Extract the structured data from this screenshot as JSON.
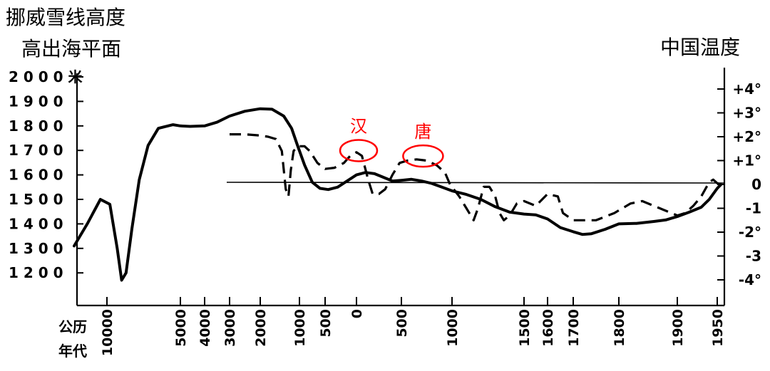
{
  "chart_data": {
    "type": "line",
    "left_title_line1": "挪威雪线高度",
    "left_title_line2": "高出海平面",
    "right_title": "中国温度",
    "y_left_ticks": [
      "2 0 0 0 米",
      "1 9 0 0",
      "1 8 0 0",
      "1 7 0 0",
      "1 6 0 0",
      "1 5 0 0",
      "1 4 0 0",
      "1 3 0 0",
      "1 2 0 0"
    ],
    "y_left_range": [
      1150,
      2000
    ],
    "y_right_ticks": [
      "+4°",
      "+3°",
      "+2°",
      "+1°",
      "0",
      "-1",
      "-2°",
      "-3",
      "-4°"
    ],
    "y_right_range": [
      -4,
      4
    ],
    "x_label_line1": "公历",
    "x_label_line2": "年代",
    "x_ticks": [
      "10000",
      "5000",
      "4000",
      "3000",
      "2000",
      "1000",
      "500",
      "0",
      "500",
      "1000",
      "1500",
      "1600",
      "1700",
      "1800",
      "1900",
      "1950"
    ],
    "annotations": [
      {
        "text": "汉",
        "x_year": 0,
        "temp": 1.3
      },
      {
        "text": "唐",
        "x_year": 700,
        "temp": 1.1
      }
    ],
    "series": [
      {
        "points": [
          [
            -12500,
            1310
          ],
          [
            -11500,
            1400
          ],
          [
            -10500,
            1500
          ],
          [
            -9800,
            1480
          ],
          [
            -9300,
            1300
          ],
          [
            -9000,
            1170
          ],
          [
            -8700,
            1200
          ],
          [
            -8300,
            1380
          ],
          [
            -7800,
            1580
          ],
          [
            -7200,
            1720
          ],
          [
            -6500,
            1790
          ],
          [
            -5500,
            1805
          ],
          [
            -5000,
            1800
          ],
          [
            -4600,
            1798
          ],
          [
            -4000,
            1800
          ],
          [
            -3500,
            1815
          ],
          [
            -3000,
            1840
          ],
          [
            -2500,
            1860
          ],
          [
            -2000,
            1870
          ],
          [
            -1700,
            1868
          ],
          [
            -1400,
            1840
          ],
          [
            -1200,
            1790
          ],
          [
            -1050,
            1720
          ],
          [
            -900,
            1640
          ],
          [
            -750,
            1570
          ],
          [
            -600,
            1545
          ],
          [
            -450,
            1540
          ],
          [
            -300,
            1550
          ],
          [
            -150,
            1575
          ],
          [
            0,
            1600
          ],
          [
            100,
            1610
          ],
          [
            200,
            1605
          ],
          [
            300,
            1590
          ],
          [
            400,
            1575
          ],
          [
            500,
            1578
          ],
          [
            600,
            1582
          ],
          [
            700,
            1575
          ],
          [
            800,
            1565
          ],
          [
            900,
            1550
          ],
          [
            1000,
            1535
          ],
          [
            1100,
            1520
          ],
          [
            1200,
            1500
          ],
          [
            1300,
            1470
          ],
          [
            1400,
            1448
          ],
          [
            1500,
            1440
          ],
          [
            1550,
            1437
          ],
          [
            1600,
            1420
          ],
          [
            1650,
            1385
          ],
          [
            1700,
            1368
          ],
          [
            1720,
            1357
          ],
          [
            1740,
            1360
          ],
          [
            1770,
            1378
          ],
          [
            1800,
            1400
          ],
          [
            1830,
            1402
          ],
          [
            1860,
            1410
          ],
          [
            1880,
            1416
          ],
          [
            1900,
            1430
          ],
          [
            1915,
            1448
          ],
          [
            1930,
            1468
          ],
          [
            1940,
            1500
          ],
          [
            1950,
            1545
          ],
          [
            1955,
            1560
          ]
        ]
      },
      {
        "points": [
          [
            -3000,
            2.1
          ],
          [
            -2500,
            2.1
          ],
          [
            -2000,
            2.05
          ],
          [
            -1800,
            2.0
          ],
          [
            -1600,
            1.9
          ],
          [
            -1450,
            1.4
          ],
          [
            -1350,
            -0.2
          ],
          [
            -1280,
            -0.5
          ],
          [
            -1220,
            0.6
          ],
          [
            -1150,
            1.4
          ],
          [
            -1050,
            1.6
          ],
          [
            -900,
            1.6
          ],
          [
            -800,
            1.4
          ],
          [
            -650,
            0.9
          ],
          [
            -500,
            0.65
          ],
          [
            -350,
            0.7
          ],
          [
            -200,
            0.9
          ],
          [
            -100,
            1.2
          ],
          [
            0,
            1.35
          ],
          [
            60,
            1.2
          ],
          [
            130,
            0.2
          ],
          [
            180,
            -0.4
          ],
          [
            250,
            -0.4
          ],
          [
            320,
            -0.2
          ],
          [
            400,
            0.4
          ],
          [
            480,
            0.9
          ],
          [
            560,
            1.0
          ],
          [
            650,
            1.05
          ],
          [
            750,
            1.0
          ],
          [
            850,
            0.8
          ],
          [
            930,
            0.5
          ],
          [
            980,
            0.0
          ],
          [
            1050,
            -0.5
          ],
          [
            1100,
            -1.0
          ],
          [
            1150,
            -1.5
          ],
          [
            1180,
            -1.0
          ],
          [
            1220,
            -0.1
          ],
          [
            1260,
            -0.1
          ],
          [
            1300,
            -0.5
          ],
          [
            1330,
            -1.2
          ],
          [
            1360,
            -1.5
          ],
          [
            1400,
            -1.3
          ],
          [
            1450,
            -0.8
          ],
          [
            1500,
            -0.7
          ],
          [
            1550,
            -0.9
          ],
          [
            1600,
            -0.4
          ],
          [
            1640,
            -0.5
          ],
          [
            1660,
            -1.2
          ],
          [
            1700,
            -1.5
          ],
          [
            1750,
            -1.5
          ],
          [
            1790,
            -1.2
          ],
          [
            1820,
            -0.8
          ],
          [
            1840,
            -0.7
          ],
          [
            1860,
            -0.9
          ],
          [
            1880,
            -1.1
          ],
          [
            1900,
            -1.3
          ],
          [
            1910,
            -1.2
          ],
          [
            1920,
            -0.9
          ],
          [
            1930,
            -0.5
          ],
          [
            1940,
            0.1
          ],
          [
            1945,
            0.2
          ],
          [
            1950,
            0.05
          ],
          [
            1955,
            0.0
          ]
        ]
      }
    ]
  }
}
